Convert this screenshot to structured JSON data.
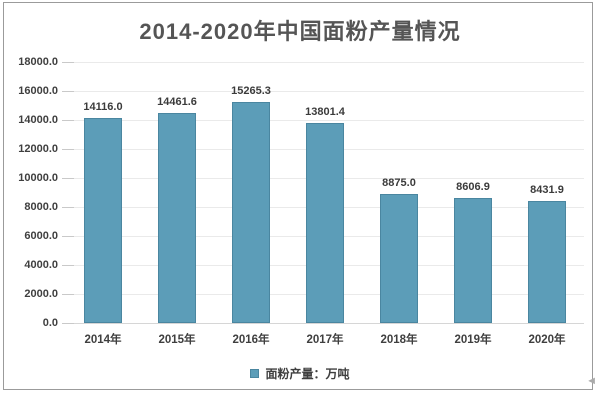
{
  "chart_data": {
    "type": "bar",
    "title": "2014-2020年中国面粉产量情况",
    "categories": [
      "2014年",
      "2015年",
      "2016年",
      "2017年",
      "2018年",
      "2019年",
      "2020年"
    ],
    "series": [
      {
        "name": "面粉产量：万吨",
        "values": [
          14116.0,
          14461.6,
          15265.3,
          13801.4,
          8875.0,
          8606.9,
          8431.9
        ]
      }
    ],
    "value_labels": [
      "14116.0",
      "14461.6",
      "15265.3",
      "13801.4",
      "8875.0",
      "8606.9",
      "8431.9"
    ],
    "xlabel": "",
    "ylabel": "",
    "ylim": [
      0,
      18000
    ],
    "ytick_step": 2000,
    "ytick_labels": [
      "0.0",
      "2000.0",
      "4000.0",
      "6000.0",
      "8000.0",
      "10000.0",
      "12000.0",
      "14000.0",
      "16000.0",
      "18000.0"
    ],
    "grid": true,
    "legend_position": "bottom",
    "legend": {
      "label": "面粉产量：万吨"
    },
    "colors": {
      "bar_fill": "#5C9DB8",
      "bar_border": "#4A86A0",
      "title": "#555555",
      "text": "#3F3F3F",
      "gridline": "#EAEAEA",
      "baseline": "#D6D6D6",
      "frame": "#9B9B9B"
    }
  },
  "decorations": {
    "corner_cursor": "◄"
  }
}
